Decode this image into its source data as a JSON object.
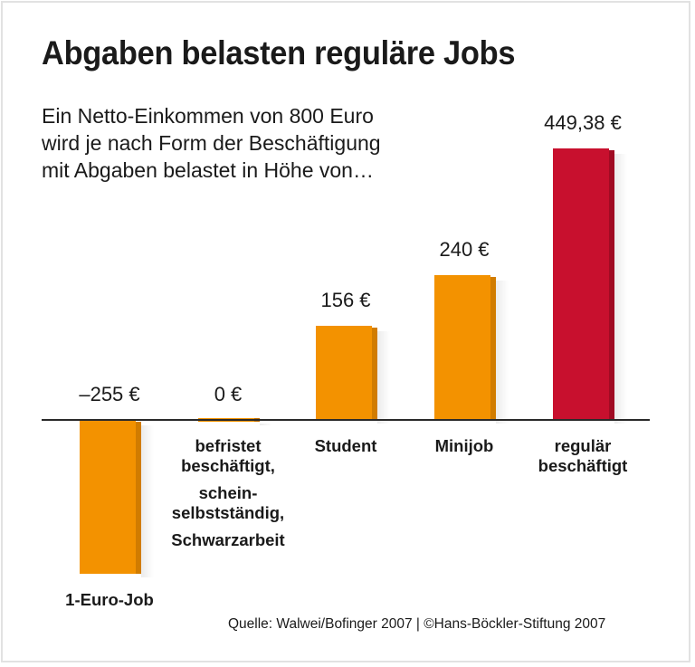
{
  "chart_data": {
    "type": "bar",
    "title": "Abgaben belasten reguläre Jobs",
    "subtitle": "Ein Netto-Einkommen von 800 Euro\nwird je nach Form der Beschäftigung\nmit Abgaben belastet in Höhe von…",
    "categories": [
      "1-Euro-Job",
      "befristet beschäftigt, schein-selbstständig, Schwarzarbeit",
      "Student",
      "Minijob",
      "regulär beschäftigt"
    ],
    "values": [
      -255,
      0,
      156,
      240,
      449.38
    ],
    "value_labels": [
      "–255 €",
      "0 €",
      "156 €",
      "240 €",
      "449,38 €"
    ],
    "unit": "€",
    "xlabel": "",
    "ylabel": "",
    "grid": false,
    "legend": null,
    "source": "Quelle: Walwei/Bofinger 2007 | ©Hans-Böckler-Stiftung 2007"
  },
  "header": {
    "title": "Abgaben belasten reguläre Jobs",
    "subtitle": "Ein Netto-Einkommen von 800 Euro\nwird je nach Form der Beschäftigung\nmit Abgaben belastet in Höhe von…"
  },
  "bars": [
    {
      "value_label": "–255 €",
      "label_groups": [
        [
          "1-Euro-Job"
        ]
      ],
      "color": "#F39200",
      "side": "#D17C00"
    },
    {
      "value_label": "0 €",
      "label_groups": [
        [
          "befristet",
          "beschäftigt,"
        ],
        [
          "schein-",
          "selbstständig,"
        ],
        [
          "Schwarzarbeit"
        ]
      ],
      "color": "#F39200",
      "side": "#C06E00"
    },
    {
      "value_label": "156 €",
      "label_groups": [
        [
          "Student"
        ]
      ],
      "color": "#F39200",
      "side": "#D17C00"
    },
    {
      "value_label": "240 €",
      "label_groups": [
        [
          "Minijob"
        ]
      ],
      "color": "#F39200",
      "side": "#D17C00"
    },
    {
      "value_label": "449,38 €",
      "label_groups": [
        [
          "regulär",
          "beschäftigt"
        ]
      ],
      "color": "#C8102E",
      "side": "#A00B23"
    }
  ],
  "footer": {
    "source": "Quelle: Walwei/Bofinger 2007 | ©Hans-Böckler-Stiftung 2007"
  }
}
